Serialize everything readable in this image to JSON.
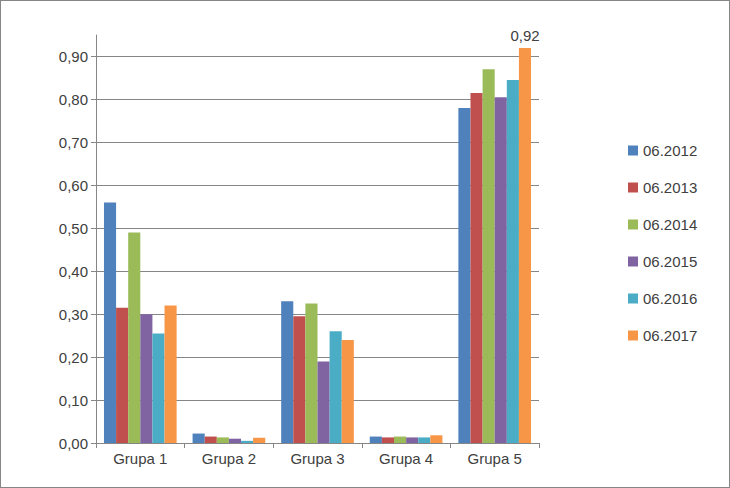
{
  "chart_data": {
    "type": "bar",
    "categories": [
      "Grupa 1",
      "Grupa 2",
      "Grupa 3",
      "Grupa 4",
      "Grupa 5"
    ],
    "series": [
      {
        "name": "06.2012",
        "color": "#4f81bd",
        "values": [
          0.56,
          0.022,
          0.33,
          0.015,
          0.78
        ]
      },
      {
        "name": "06.2013",
        "color": "#c0504d",
        "values": [
          0.315,
          0.015,
          0.295,
          0.013,
          0.815
        ]
      },
      {
        "name": "06.2014",
        "color": "#9bbb59",
        "values": [
          0.49,
          0.013,
          0.325,
          0.015,
          0.87
        ]
      },
      {
        "name": "06.2015",
        "color": "#8064a2",
        "values": [
          0.3,
          0.01,
          0.19,
          0.013,
          0.805
        ]
      },
      {
        "name": "06.2016",
        "color": "#4bacc6",
        "values": [
          0.255,
          0.005,
          0.26,
          0.013,
          0.845
        ]
      },
      {
        "name": "06.2017",
        "color": "#f79646",
        "values": [
          0.32,
          0.012,
          0.24,
          0.018,
          0.92
        ]
      }
    ],
    "ylim": [
      0,
      0.95
    ],
    "yticks": [
      {
        "value": 0,
        "label": "0,00"
      },
      {
        "value": 0.1,
        "label": "0,10"
      },
      {
        "value": 0.2,
        "label": "0,20"
      },
      {
        "value": 0.3,
        "label": "0,30"
      },
      {
        "value": 0.4,
        "label": "0,40"
      },
      {
        "value": 0.5,
        "label": "0,50"
      },
      {
        "value": 0.6,
        "label": "0,60"
      },
      {
        "value": 0.7,
        "label": "0,70"
      },
      {
        "value": 0.8,
        "label": "0,80"
      },
      {
        "value": 0.9,
        "label": "0,90"
      }
    ],
    "annotations": [
      {
        "text": "0,92",
        "x": "Grupa 5",
        "series": "06.2017"
      }
    ],
    "grid": true,
    "legend": "right"
  }
}
